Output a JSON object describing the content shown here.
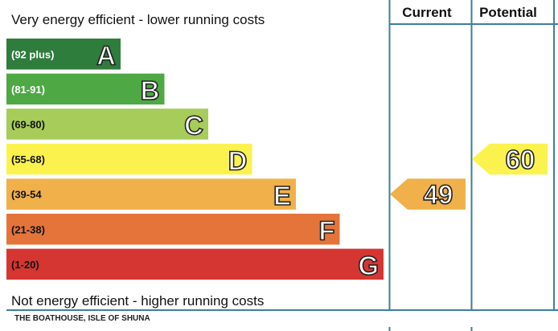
{
  "chart_data": {
    "type": "bar",
    "top_note": "Very energy efficient - lower running costs",
    "bottom_note": "Not energy efficient - higher running costs",
    "property_label": "THE BOATHOUSE, ISLE OF SHUNA",
    "columns": {
      "current": "Current",
      "potential": "Potential"
    },
    "bands": [
      {
        "letter": "A",
        "range": "(92 plus)",
        "min": 92,
        "max": 100,
        "color": "#2e7d3c",
        "range_text_color": "#ffffff"
      },
      {
        "letter": "B",
        "range": "(81-91)",
        "min": 81,
        "max": 91,
        "color": "#4ea843",
        "range_text_color": "#ffffff"
      },
      {
        "letter": "C",
        "range": "(69-80)",
        "min": 69,
        "max": 80,
        "color": "#a7cc5a",
        "range_text_color": "#111111"
      },
      {
        "letter": "D",
        "range": "(55-68)",
        "min": 55,
        "max": 68,
        "color": "#fbf24e",
        "range_text_color": "#111111"
      },
      {
        "letter": "E",
        "range": "(39-54",
        "min": 39,
        "max": 54,
        "color": "#f0b04a",
        "range_text_color": "#111111"
      },
      {
        "letter": "F",
        "range": "(21-38)",
        "min": 21,
        "max": 38,
        "color": "#e4743a",
        "range_text_color": "#111111"
      },
      {
        "letter": "G",
        "range": "(1-20)",
        "min": 1,
        "max": 20,
        "color": "#d63632",
        "range_text_color": "#111111"
      }
    ],
    "current": {
      "value": 49,
      "band": "E",
      "color": "#f0b04a"
    },
    "potential": {
      "value": 60,
      "band": "D",
      "color": "#fbf24e"
    },
    "frame_color": "#3b7f9a"
  }
}
